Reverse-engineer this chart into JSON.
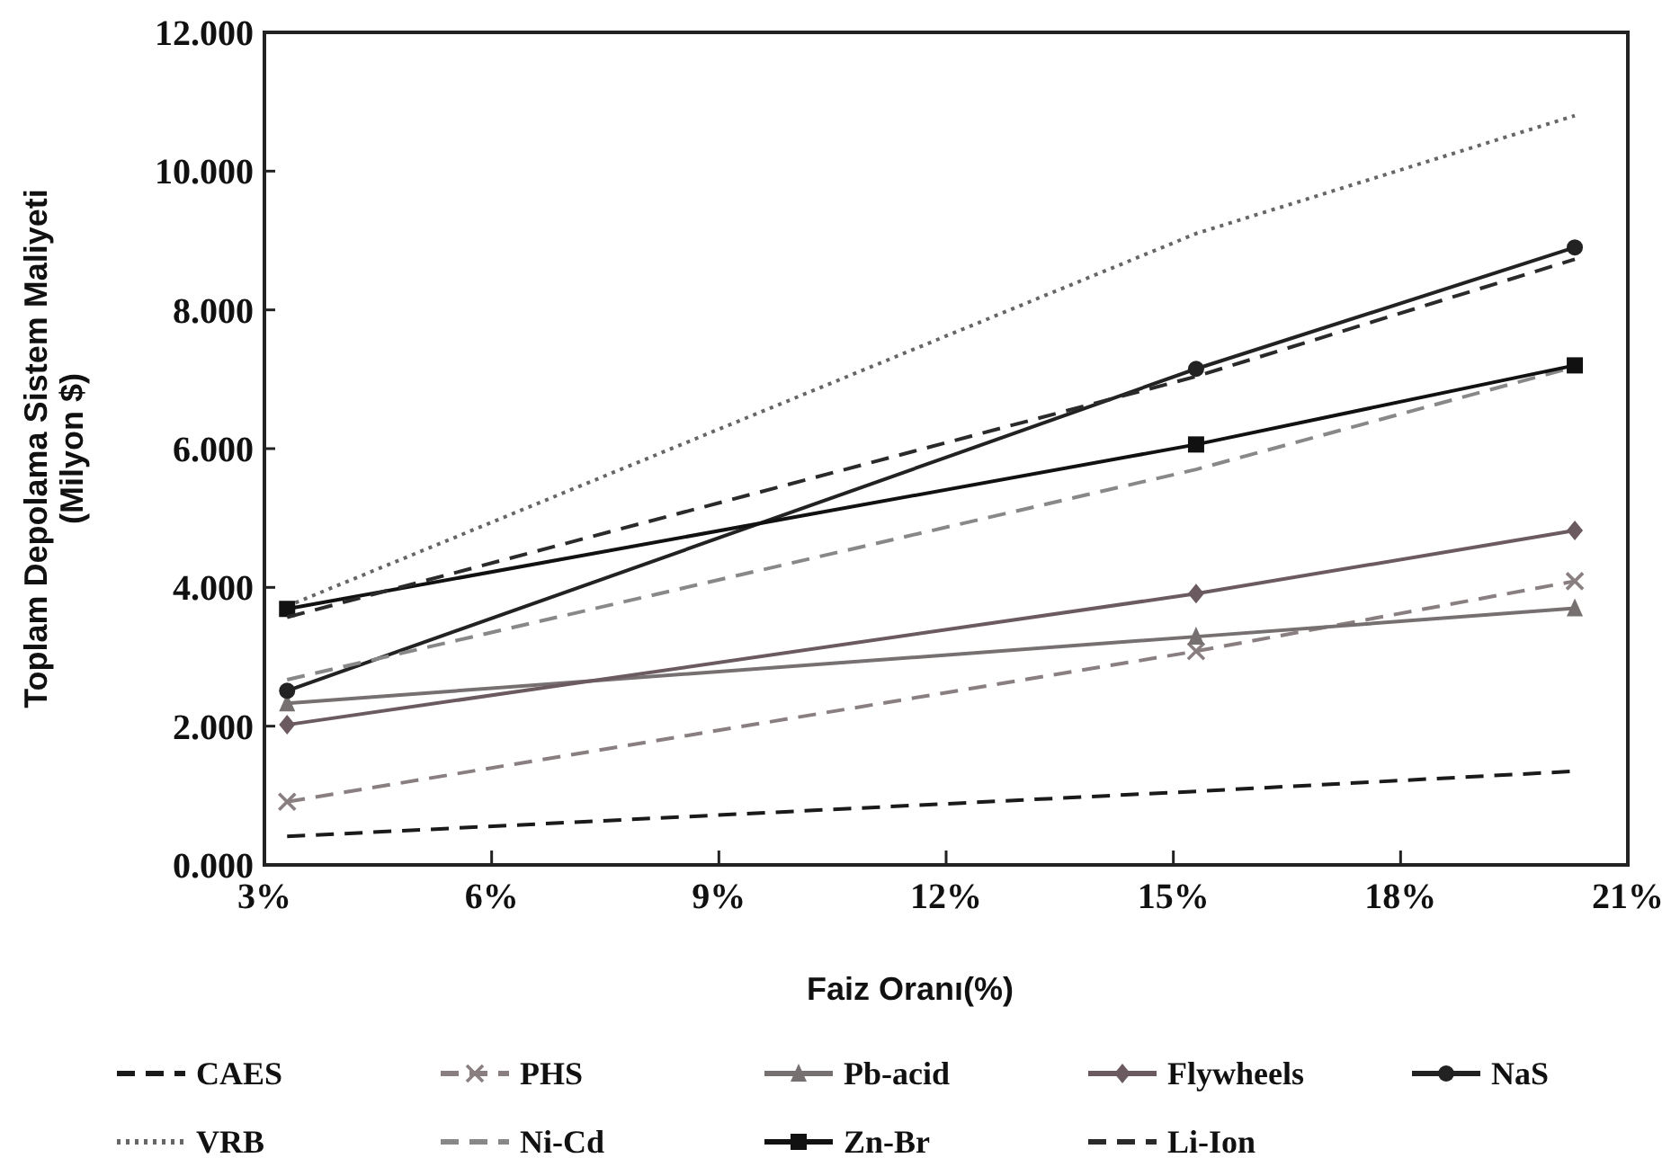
{
  "chart_data": {
    "type": "line",
    "xlabel": "Faiz Oranı(%)",
    "ylabel": "Toplam Depolama Sistem Maliyeti\n(Milyon $)",
    "xlim": [
      3,
      21
    ],
    "xticks": [
      {
        "value": 3,
        "label": "3%"
      },
      {
        "value": 6,
        "label": "6%"
      },
      {
        "value": 9,
        "label": "9%"
      },
      {
        "value": 12,
        "label": "12%"
      },
      {
        "value": 15,
        "label": "15%"
      },
      {
        "value": 18,
        "label": "18%"
      },
      {
        "value": 21,
        "label": "21%"
      }
    ],
    "ylim": [
      0,
      12
    ],
    "yticks": [
      {
        "value": 0,
        "label": "0.000"
      },
      {
        "value": 2,
        "label": "2.000"
      },
      {
        "value": 4,
        "label": "4.000"
      },
      {
        "value": 6,
        "label": "6.000"
      },
      {
        "value": 8,
        "label": "8.000"
      },
      {
        "value": 10,
        "label": "10.000"
      },
      {
        "value": 12,
        "label": "12.000"
      }
    ],
    "x": [
      3.3,
      15.3,
      20.3
    ],
    "legend": "bottom",
    "grid": false,
    "series": [
      {
        "name": "CAES",
        "color": "#1a1a1a",
        "values": [
          0.41,
          1.06,
          1.35
        ],
        "line_style": "dashed",
        "marker": "none"
      },
      {
        "name": "PHS",
        "color": "#8a7f80",
        "values": [
          0.91,
          3.08,
          4.09
        ],
        "line_style": "dashed",
        "marker": "cross"
      },
      {
        "name": "Pb-acid",
        "color": "#777070",
        "values": [
          2.33,
          3.29,
          3.7
        ],
        "line_style": "solid",
        "marker": "triangle"
      },
      {
        "name": "Flywheels",
        "color": "#6b5a60",
        "values": [
          2.02,
          3.91,
          4.82
        ],
        "line_style": "solid",
        "marker": "diamond"
      },
      {
        "name": "NaS",
        "color": "#222222",
        "values": [
          2.51,
          7.15,
          8.9
        ],
        "line_style": "solid",
        "marker": "circle"
      },
      {
        "name": "VRB",
        "color": "#666666",
        "values": [
          3.73,
          9.1,
          10.8
        ],
        "line_style": "dotted",
        "marker": "none"
      },
      {
        "name": "Ni-Cd",
        "color": "#888888",
        "values": [
          2.67,
          5.7,
          7.18
        ],
        "line_style": "dashed",
        "marker": "none"
      },
      {
        "name": "Zn-Br",
        "color": "#111111",
        "values": [
          3.69,
          6.06,
          7.2
        ],
        "line_style": "solid",
        "marker": "square"
      },
      {
        "name": "Li-Ion",
        "color": "#2a2a2a",
        "values": [
          3.57,
          7.04,
          8.73
        ],
        "line_style": "dashed",
        "marker": "none"
      }
    ]
  }
}
